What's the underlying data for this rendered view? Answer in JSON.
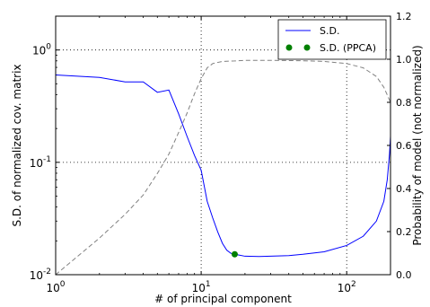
{
  "chart_data": {
    "type": "line",
    "xscale": "log",
    "xlim": [
      1,
      200
    ],
    "left_axis": {
      "label": "S.D. of normalized cov. matrix",
      "scale": "log",
      "ylim": [
        0.01,
        2
      ],
      "ticks": [
        {
          "value": 0.01,
          "base": "10",
          "exp": "-2"
        },
        {
          "value": 0.1,
          "base": "10",
          "exp": "-1"
        },
        {
          "value": 1,
          "base": "10",
          "exp": "0"
        }
      ]
    },
    "right_axis": {
      "label": "Probability of model (not normalized)",
      "scale": "linear",
      "ylim": [
        0,
        1.2
      ],
      "ticks": [
        "0.0",
        "0.2",
        "0.4",
        "0.6",
        "0.8",
        "1.0",
        "1.2"
      ]
    },
    "xlabel": "# of principal component",
    "x_ticks": [
      {
        "value": 1,
        "base": "10",
        "exp": "0"
      },
      {
        "value": 10,
        "base": "10",
        "exp": "1"
      },
      {
        "value": 100,
        "base": "10",
        "exp": "2"
      }
    ],
    "grid": true,
    "legend_position": "top-right",
    "series": [
      {
        "name": "S.D.",
        "axis": "left",
        "color": "#0000ff",
        "style": "solid",
        "points": [
          [
            1,
            0.6
          ],
          [
            2,
            0.57
          ],
          [
            3,
            0.52
          ],
          [
            4,
            0.52
          ],
          [
            5,
            0.42
          ],
          [
            6,
            0.44
          ],
          [
            7,
            0.27
          ],
          [
            8,
            0.17
          ],
          [
            9,
            0.115
          ],
          [
            10,
            0.085
          ],
          [
            11,
            0.045
          ],
          [
            12,
            0.032
          ],
          [
            13,
            0.024
          ],
          [
            14,
            0.019
          ],
          [
            15,
            0.0165
          ],
          [
            16,
            0.0155
          ],
          [
            18,
            0.015
          ],
          [
            20,
            0.0146
          ],
          [
            25,
            0.0145
          ],
          [
            30,
            0.0146
          ],
          [
            40,
            0.0148
          ],
          [
            50,
            0.0152
          ],
          [
            70,
            0.016
          ],
          [
            100,
            0.0182
          ],
          [
            130,
            0.022
          ],
          [
            160,
            0.03
          ],
          [
            180,
            0.045
          ],
          [
            190,
            0.07
          ],
          [
            197,
            0.12
          ],
          [
            200,
            0.17
          ]
        ]
      },
      {
        "name": "",
        "axis": "right",
        "color": "#808080",
        "style": "dashed",
        "points": [
          [
            1,
            0.0
          ],
          [
            2,
            0.17
          ],
          [
            3,
            0.28
          ],
          [
            4,
            0.37
          ],
          [
            5,
            0.47
          ],
          [
            6,
            0.56
          ],
          [
            7,
            0.66
          ],
          [
            8,
            0.75
          ],
          [
            9,
            0.84
          ],
          [
            10,
            0.91
          ],
          [
            11,
            0.96
          ],
          [
            12,
            0.98
          ],
          [
            14,
            0.99
          ],
          [
            17,
            0.992
          ],
          [
            20,
            0.995
          ],
          [
            30,
            0.995
          ],
          [
            50,
            0.993
          ],
          [
            70,
            0.99
          ],
          [
            100,
            0.98
          ],
          [
            130,
            0.96
          ],
          [
            160,
            0.92
          ],
          [
            180,
            0.87
          ],
          [
            200,
            0.8
          ]
        ]
      },
      {
        "name": "S.D. (PPCA)",
        "axis": "left",
        "color": "#008000",
        "style": "marker",
        "points": [
          [
            17,
            0.0152
          ]
        ]
      }
    ]
  }
}
